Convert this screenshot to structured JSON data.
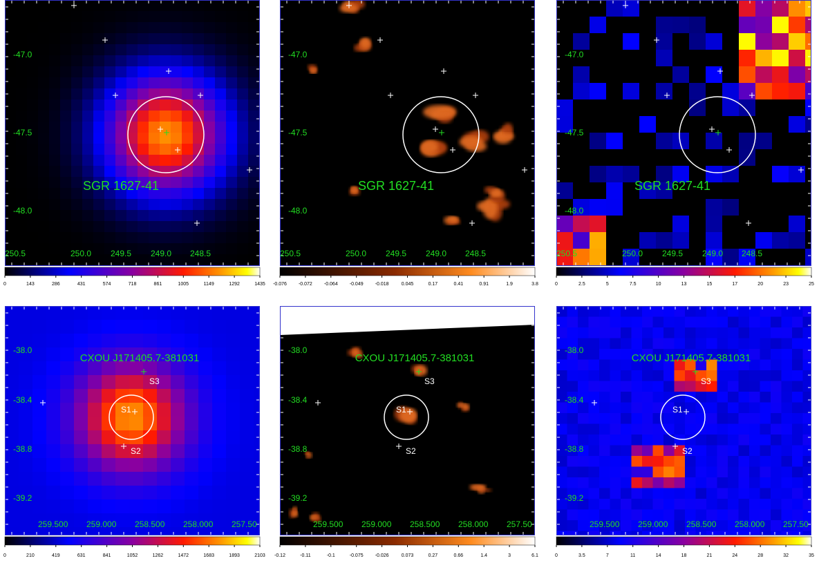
{
  "panels": [
    {
      "source": "SGR 1627-41",
      "x_labels": [
        "250.5",
        "250.0",
        "249.5",
        "249.0",
        "248.5"
      ],
      "y_labels": [
        "-47.0",
        "-47.5",
        "-48.0"
      ],
      "colorbar_ticks": [
        "0",
        "143",
        "286",
        "431",
        "574",
        "718",
        "861",
        "1005",
        "1149",
        "1292",
        "1435"
      ]
    },
    {
      "source": "SGR 1627-41",
      "x_labels": [
        "250.5",
        "250.0",
        "249.5",
        "249.0",
        "248.5"
      ],
      "y_labels": [
        "-47.0",
        "-47.5",
        "-48.0"
      ],
      "colorbar_ticks": [
        "-0.076",
        "-0.072",
        "-0.064",
        "-0.049",
        "-0.018",
        "0.045",
        "0.17",
        "0.41",
        "0.91",
        "1.9",
        "3.8"
      ]
    },
    {
      "source": "SGR 1627-41",
      "x_labels": [
        "250.5",
        "250.0",
        "249.5",
        "249.0",
        "248.5"
      ],
      "y_labels": [
        "-47.0",
        "-47.5",
        "-48.0"
      ],
      "colorbar_ticks": [
        "0",
        "2.5",
        "5",
        "7.5",
        "10",
        "13",
        "15",
        "17",
        "20",
        "23",
        "25"
      ]
    },
    {
      "source": "CXOU J171405.7-381031",
      "x_labels": [
        "259.500",
        "259.000",
        "258.500",
        "258.000",
        "257.50"
      ],
      "y_labels": [
        "-38.0",
        "-38.4",
        "-38.8",
        "-39.2"
      ],
      "markers": [
        "S1",
        "S2",
        "S3"
      ],
      "colorbar_ticks": [
        "0",
        "210",
        "419",
        "631",
        "841",
        "1052",
        "1262",
        "1472",
        "1683",
        "1893",
        "2103"
      ]
    },
    {
      "source": "CXOU J171405.7-381031",
      "x_labels": [
        "259.500",
        "259.000",
        "258.500",
        "258.000",
        "257.50"
      ],
      "y_labels": [
        "-38.0",
        "-38.4",
        "-38.8",
        "-39.2"
      ],
      "markers": [
        "S1",
        "S2",
        "S3"
      ],
      "colorbar_ticks": [
        "-0.12",
        "-0.11",
        "-0.1",
        "-0.075",
        "-0.026",
        "0.073",
        "0.27",
        "0.66",
        "1.4",
        "3",
        "6.1"
      ]
    },
    {
      "source": "CXOU J171405.7-381031",
      "x_labels": [
        "259.500",
        "259.000",
        "258.500",
        "258.000",
        "257.50"
      ],
      "y_labels": [
        "-38.0",
        "-38.4",
        "-38.8",
        "-39.2"
      ],
      "markers": [
        "S1",
        "S2",
        "S3"
      ],
      "colorbar_ticks": [
        "0",
        "3.5",
        "7",
        "11",
        "14",
        "18",
        "21",
        "24",
        "28",
        "32",
        "35"
      ]
    }
  ]
}
